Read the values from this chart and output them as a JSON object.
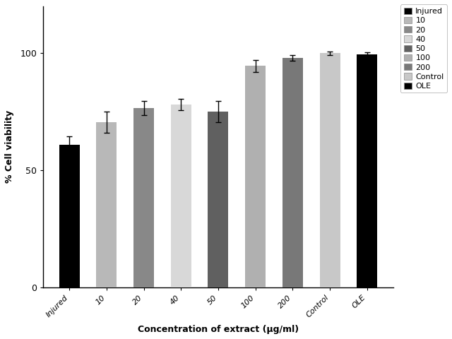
{
  "categories": [
    "Injured",
    "10",
    "20",
    "40",
    "50",
    "100",
    "200",
    "Control",
    "OLE"
  ],
  "values": [
    61.0,
    70.5,
    76.5,
    78.0,
    75.0,
    94.5,
    98.0,
    100.0,
    99.5
  ],
  "errors": [
    3.5,
    4.5,
    3.0,
    2.5,
    4.5,
    2.5,
    1.2,
    0.8,
    0.8
  ],
  "bar_colors": [
    "#000000",
    "#b8b8b8",
    "#888888",
    "#d8d8d8",
    "#606060",
    "#b0b0b0",
    "#787878",
    "#c8c8c8",
    "#000000"
  ],
  "legend_labels": [
    "Injured",
    "10",
    "20",
    "40",
    "50",
    "100",
    "200",
    "Control",
    "OLE"
  ],
  "legend_colors": [
    "#000000",
    "#b8b8b8",
    "#888888",
    "#d8d8d8",
    "#606060",
    "#b0b0b0",
    "#787878",
    "#c8c8c8",
    "#000000"
  ],
  "xlabel": "Concentration of extract (μg/ml)",
  "ylabel": "% Cell viability",
  "ylim": [
    0,
    120
  ],
  "yticks": [
    0,
    50,
    100
  ],
  "background_color": "#ffffff",
  "bar_width": 0.55,
  "capsize": 3,
  "figsize": [
    6.4,
    4.8
  ],
  "dpi": 100
}
